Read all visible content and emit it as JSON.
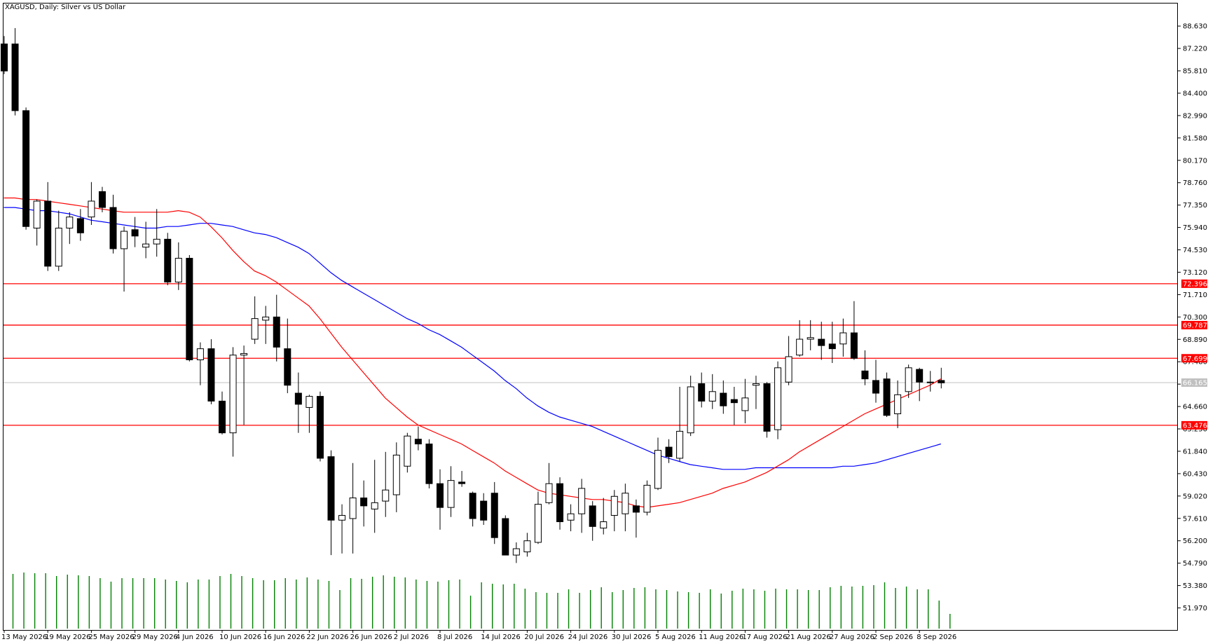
{
  "title": "XAGUSD, Daily:  Silver vs US Dollar",
  "chart_data": {
    "type": "candlestick",
    "symbol": "XAGUSD",
    "timeframe": "Daily",
    "description": "Silver vs US Dollar",
    "ylim": [
      50.58,
      90.05
    ],
    "y_ticks": [
      "88.630",
      "87.220",
      "85.810",
      "84.400",
      "82.990",
      "81.580",
      "80.170",
      "78.760",
      "77.350",
      "75.940",
      "74.530",
      "73.120",
      "71.710",
      "70.300",
      "68.890",
      "67.480",
      "66.070",
      "64.660",
      "63.250",
      "61.840",
      "60.430",
      "59.020",
      "57.610",
      "56.200",
      "54.790",
      "53.380",
      "51.970"
    ],
    "x_labels": [
      {
        "i": 0,
        "label": "13 May 2026"
      },
      {
        "i": 4,
        "label": "19 May 2026"
      },
      {
        "i": 8,
        "label": "25 May 2026"
      },
      {
        "i": 12,
        "label": "29 May 2026"
      },
      {
        "i": 16,
        "label": "4 Jun 2026"
      },
      {
        "i": 20,
        "label": "10 Jun 2026"
      },
      {
        "i": 24,
        "label": "16 Jun 2026"
      },
      {
        "i": 28,
        "label": "22 Jun 2026"
      },
      {
        "i": 32,
        "label": "26 Jun 2026"
      },
      {
        "i": 36,
        "label": "2 Jul 2026"
      },
      {
        "i": 40,
        "label": "8 Jul 2026"
      },
      {
        "i": 44,
        "label": "14 Jul 2026"
      },
      {
        "i": 48,
        "label": "20 Jul 2026"
      },
      {
        "i": 52,
        "label": "24 Jul 2026"
      },
      {
        "i": 56,
        "label": "30 Jul 2026"
      },
      {
        "i": 60,
        "label": "5 Aug 2026"
      },
      {
        "i": 64,
        "label": "11 Aug 2026"
      },
      {
        "i": 68,
        "label": "17 Aug 2026"
      },
      {
        "i": 72,
        "label": "21 Aug 2026"
      },
      {
        "i": 76,
        "label": "27 Aug 2026"
      },
      {
        "i": 80,
        "label": "2 Sep 2026"
      },
      {
        "i": 84,
        "label": "8 Sep 2026"
      }
    ],
    "candles": [
      [
        87.5,
        88.0,
        85.6,
        85.8
      ],
      [
        87.5,
        88.5,
        83.0,
        83.3
      ],
      [
        83.3,
        83.5,
        75.8,
        76.0
      ],
      [
        75.9,
        77.7,
        74.8,
        77.6
      ],
      [
        77.6,
        78.8,
        73.2,
        73.5
      ],
      [
        73.5,
        77.0,
        73.2,
        75.9
      ],
      [
        75.9,
        76.9,
        74.9,
        76.6
      ],
      [
        76.5,
        77.1,
        75.1,
        75.6
      ],
      [
        76.6,
        78.8,
        76.1,
        77.6
      ],
      [
        78.2,
        78.5,
        76.9,
        77.2
      ],
      [
        77.2,
        78.0,
        74.3,
        74.6
      ],
      [
        74.6,
        76.0,
        71.9,
        75.7
      ],
      [
        75.8,
        76.6,
        74.7,
        75.4
      ],
      [
        74.7,
        76.3,
        74.0,
        74.9
      ],
      [
        74.9,
        77.1,
        74.1,
        75.2
      ],
      [
        75.2,
        75.6,
        72.3,
        72.5
      ],
      [
        72.5,
        75.0,
        72.0,
        74.0
      ],
      [
        74.0,
        74.2,
        67.5,
        67.6
      ],
      [
        67.6,
        68.7,
        66.0,
        68.3
      ],
      [
        68.3,
        68.9,
        64.8,
        65.0
      ],
      [
        65.0,
        65.6,
        62.9,
        63.0
      ],
      [
        63.0,
        68.4,
        61.5,
        67.9
      ],
      [
        67.9,
        68.5,
        63.5,
        68.0
      ],
      [
        68.9,
        71.6,
        68.6,
        70.2
      ],
      [
        70.1,
        71.0,
        68.6,
        70.3
      ],
      [
        70.3,
        71.7,
        67.5,
        68.4
      ],
      [
        68.3,
        70.2,
        65.5,
        66.0
      ],
      [
        65.5,
        66.8,
        63.0,
        64.8
      ],
      [
        64.6,
        65.4,
        63.0,
        65.3
      ],
      [
        65.3,
        65.6,
        61.2,
        61.4
      ],
      [
        61.5,
        61.9,
        55.3,
        57.5
      ],
      [
        57.5,
        58.5,
        55.4,
        57.8
      ],
      [
        57.6,
        61.1,
        55.4,
        58.9
      ],
      [
        58.9,
        60.0,
        57.1,
        58.4
      ],
      [
        58.2,
        61.3,
        56.7,
        58.6
      ],
      [
        58.7,
        61.8,
        57.7,
        59.4
      ],
      [
        59.1,
        62.4,
        58.0,
        61.6
      ],
      [
        60.9,
        63.0,
        60.5,
        62.8
      ],
      [
        62.6,
        63.4,
        61.9,
        62.3
      ],
      [
        62.3,
        62.6,
        59.5,
        59.8
      ],
      [
        59.8,
        60.7,
        56.9,
        58.3
      ],
      [
        58.3,
        60.9,
        57.7,
        60.0
      ],
      [
        59.9,
        60.6,
        59.6,
        59.8
      ],
      [
        59.2,
        59.3,
        57.1,
        57.6
      ],
      [
        58.7,
        59.2,
        57.2,
        57.5
      ],
      [
        59.2,
        59.9,
        56.0,
        56.4
      ],
      [
        57.6,
        57.8,
        55.3,
        55.3
      ],
      [
        55.3,
        56.1,
        54.8,
        55.7
      ],
      [
        55.5,
        56.7,
        55.2,
        56.2
      ],
      [
        56.1,
        59.3,
        56.0,
        58.5
      ],
      [
        58.6,
        61.1,
        58.5,
        59.8
      ],
      [
        59.8,
        60.2,
        56.9,
        57.4
      ],
      [
        57.5,
        58.5,
        56.8,
        57.9
      ],
      [
        57.9,
        60.1,
        56.7,
        59.5
      ],
      [
        58.4,
        58.7,
        56.2,
        57.1
      ],
      [
        57.0,
        58.9,
        56.6,
        57.4
      ],
      [
        57.8,
        59.4,
        56.8,
        59.0
      ],
      [
        57.9,
        59.8,
        56.8,
        59.2
      ],
      [
        58.4,
        58.8,
        56.4,
        58.0
      ],
      [
        58.0,
        60.0,
        57.8,
        59.7
      ],
      [
        59.5,
        62.7,
        59.4,
        61.9
      ],
      [
        62.1,
        62.6,
        61.1,
        61.5
      ],
      [
        61.4,
        65.9,
        61.2,
        63.1
      ],
      [
        63.0,
        66.6,
        62.8,
        65.9
      ],
      [
        66.1,
        66.8,
        64.6,
        65.0
      ],
      [
        65.0,
        66.7,
        64.5,
        65.6
      ],
      [
        65.5,
        66.3,
        64.2,
        64.7
      ],
      [
        65.1,
        65.9,
        63.5,
        64.9
      ],
      [
        64.4,
        66.4,
        63.6,
        65.2
      ],
      [
        66.0,
        66.6,
        64.5,
        66.1
      ],
      [
        66.1,
        66.2,
        62.7,
        63.1
      ],
      [
        63.2,
        67.5,
        62.6,
        67.1
      ],
      [
        66.2,
        69.1,
        66.0,
        67.8
      ],
      [
        67.9,
        70.1,
        67.8,
        68.9
      ],
      [
        68.9,
        70.1,
        68.2,
        69.0
      ],
      [
        68.9,
        70.0,
        67.6,
        68.5
      ],
      [
        68.6,
        70.0,
        67.4,
        68.3
      ],
      [
        68.6,
        70.2,
        67.8,
        69.3
      ],
      [
        69.3,
        71.3,
        67.6,
        67.7
      ],
      [
        66.9,
        68.2,
        66.0,
        66.4
      ],
      [
        66.3,
        67.6,
        64.9,
        65.5
      ],
      [
        66.4,
        66.8,
        64.0,
        64.1
      ],
      [
        64.2,
        66.3,
        63.3,
        65.4
      ],
      [
        65.6,
        67.3,
        65.2,
        67.1
      ],
      [
        67.0,
        67.1,
        65.0,
        66.2
      ],
      [
        66.2,
        66.9,
        65.6,
        66.2
      ],
      [
        66.3,
        67.1,
        65.8,
        66.15
      ]
    ],
    "ma_red": [
      77.8,
      77.8,
      77.7,
      77.7,
      77.6,
      77.5,
      77.4,
      77.3,
      77.2,
      77.1,
      77.0,
      76.9,
      76.9,
      76.9,
      76.9,
      76.9,
      77.0,
      76.9,
      76.6,
      76.0,
      75.3,
      74.5,
      73.8,
      73.2,
      72.9,
      72.5,
      72.0,
      71.5,
      71.0,
      70.2,
      69.3,
      68.4,
      67.6,
      66.8,
      66.0,
      65.2,
      64.6,
      64.0,
      63.5,
      63.2,
      62.9,
      62.6,
      62.3,
      61.9,
      61.5,
      61.1,
      60.6,
      60.2,
      59.8,
      59.4,
      59.2,
      59.1,
      59.0,
      58.9,
      58.8,
      58.8,
      58.7,
      58.6,
      58.4,
      58.3,
      58.4,
      58.5,
      58.6,
      58.8,
      59.0,
      59.2,
      59.5,
      59.7,
      59.9,
      60.2,
      60.5,
      60.9,
      61.3,
      61.8,
      62.2,
      62.6,
      63.0,
      63.4,
      63.8,
      64.2,
      64.5,
      64.8,
      65.1,
      65.4,
      65.7,
      66.0,
      66.4
    ],
    "ma_blue": [
      77.2,
      77.2,
      77.1,
      77.0,
      77.0,
      76.9,
      76.8,
      76.6,
      76.4,
      76.3,
      76.2,
      76.1,
      76.0,
      75.9,
      75.9,
      76.0,
      76.0,
      76.1,
      76.2,
      76.2,
      76.1,
      76.0,
      75.8,
      75.6,
      75.5,
      75.3,
      75.0,
      74.7,
      74.3,
      73.7,
      73.1,
      72.6,
      72.2,
      71.8,
      71.4,
      71.0,
      70.6,
      70.2,
      69.9,
      69.5,
      69.2,
      68.8,
      68.4,
      67.9,
      67.4,
      66.9,
      66.3,
      65.8,
      65.2,
      64.7,
      64.3,
      64.0,
      63.8,
      63.6,
      63.4,
      63.1,
      62.8,
      62.5,
      62.2,
      61.9,
      61.6,
      61.4,
      61.2,
      61.0,
      60.9,
      60.8,
      60.7,
      60.7,
      60.7,
      60.8,
      60.8,
      60.8,
      60.8,
      60.8,
      60.8,
      60.8,
      60.8,
      60.9,
      60.9,
      61.0,
      61.1,
      61.3,
      61.5,
      61.7,
      61.9,
      62.1,
      62.3
    ],
    "volumes": [
      0.78,
      0.8,
      0.79,
      0.79,
      0.75,
      0.77,
      0.76,
      0.75,
      0.72,
      0.67,
      0.72,
      0.72,
      0.72,
      0.72,
      0.7,
      0.68,
      0.66,
      0.7,
      0.7,
      0.75,
      0.78,
      0.75,
      0.72,
      0.69,
      0.69,
      0.72,
      0.7,
      0.73,
      0.7,
      0.68,
      0.55,
      0.72,
      0.71,
      0.74,
      0.76,
      0.74,
      0.73,
      0.7,
      0.68,
      0.67,
      0.69,
      0.7,
      0.47,
      0.66,
      0.64,
      0.63,
      0.64,
      0.57,
      0.52,
      0.51,
      0.51,
      0.56,
      0.51,
      0.55,
      0.59,
      0.52,
      0.55,
      0.58,
      0.59,
      0.56,
      0.55,
      0.53,
      0.52,
      0.51,
      0.56,
      0.5,
      0.54,
      0.57,
      0.56,
      0.54,
      0.57,
      0.56,
      0.56,
      0.55,
      0.55,
      0.59,
      0.61,
      0.6,
      0.61,
      0.62,
      0.66,
      0.58,
      0.6,
      0.56,
      0.56,
      0.4,
      0.21
    ],
    "horizontal_levels": [
      {
        "value": 72.396,
        "label": "72.396",
        "color": "#ff0000"
      },
      {
        "value": 69.787,
        "label": "69.787",
        "color": "#ff0000"
      },
      {
        "value": 67.699,
        "label": "67.699",
        "color": "#ff0000"
      },
      {
        "value": 63.476,
        "label": "63.476",
        "color": "#ff0000"
      }
    ],
    "current_price": {
      "value": 66.165,
      "label": "66.165",
      "color": "#c0c0c0"
    },
    "colors": {
      "ma_red": "#ff0000",
      "ma_blue": "#0000ff",
      "volume": "#008000",
      "bull_fill": "#ffffff",
      "bear_fill": "#000000",
      "frame": "#000000"
    }
  }
}
